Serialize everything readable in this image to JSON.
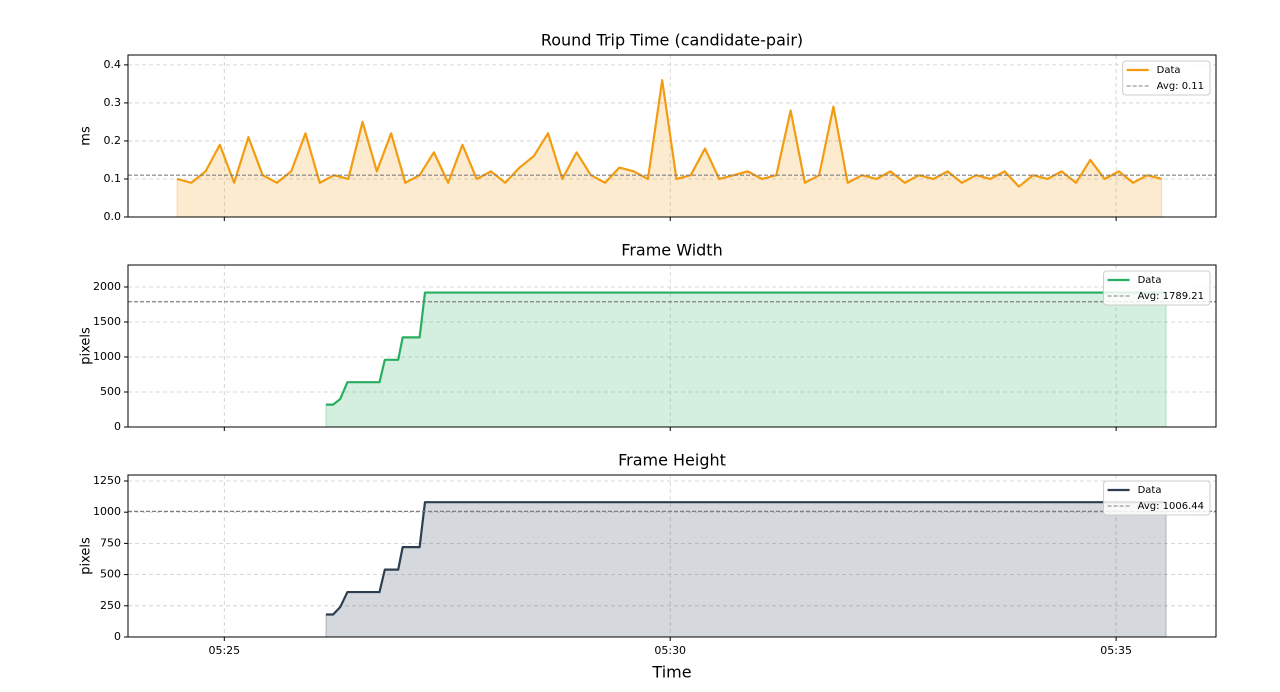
{
  "chart_data": [
    {
      "type": "line",
      "title": "Round Trip Time (candidate-pair)",
      "ylabel": "ms",
      "x": [
        324.47,
        324.63,
        324.79,
        324.95,
        325.11,
        325.27,
        325.43,
        325.59,
        325.75,
        325.91,
        326.07,
        326.23,
        326.39,
        326.55,
        326.71,
        326.87,
        327.03,
        327.19,
        327.35,
        327.51,
        327.67,
        327.83,
        327.99,
        328.15,
        328.31,
        328.47,
        328.63,
        328.79,
        328.95,
        329.11,
        329.27,
        329.43,
        329.59,
        329.75,
        329.91,
        330.07,
        330.23,
        330.39,
        330.55,
        330.71,
        330.87,
        331.03,
        331.19,
        331.35,
        331.51,
        331.67,
        331.83,
        331.99,
        332.15,
        332.31,
        332.47,
        332.63,
        332.79,
        332.95,
        333.11,
        333.27,
        333.43,
        333.59,
        333.75,
        333.91,
        334.07,
        334.23,
        334.39,
        334.55,
        334.71,
        334.87,
        335.03,
        335.19,
        335.35,
        335.51
      ],
      "series": [
        {
          "name": "Data",
          "color": "#f39c12",
          "values": [
            0.1,
            0.09,
            0.12,
            0.19,
            0.09,
            0.21,
            0.11,
            0.09,
            0.12,
            0.22,
            0.09,
            0.11,
            0.1,
            0.25,
            0.12,
            0.22,
            0.09,
            0.11,
            0.17,
            0.09,
            0.19,
            0.1,
            0.12,
            0.09,
            0.13,
            0.16,
            0.22,
            0.1,
            0.17,
            0.11,
            0.09,
            0.13,
            0.12,
            0.1,
            0.36,
            0.1,
            0.11,
            0.18,
            0.1,
            0.11,
            0.12,
            0.1,
            0.11,
            0.28,
            0.09,
            0.11,
            0.29,
            0.09,
            0.11,
            0.1,
            0.12,
            0.09,
            0.11,
            0.1,
            0.12,
            0.09,
            0.11,
            0.1,
            0.12,
            0.08,
            0.11,
            0.1,
            0.12,
            0.09,
            0.15,
            0.1,
            0.12,
            0.09,
            0.11,
            0.1
          ]
        }
      ],
      "avg_line": {
        "name": "Avg: 0.11",
        "value": 0.11,
        "color": "#808080"
      },
      "xlim": [
        323.92,
        336.12
      ],
      "ylim": [
        0,
        0.426
      ],
      "xticks": [
        {
          "value": 325,
          "label": "05:25"
        },
        {
          "value": 330,
          "label": "05:30"
        },
        {
          "value": 335,
          "label": "05:35"
        }
      ],
      "yticks": [
        {
          "value": 0,
          "label": "0.0"
        },
        0.1,
        0.2,
        0.3,
        0.4
      ],
      "grid": true,
      "legend": "upper right"
    },
    {
      "type": "line",
      "title": "Frame Width",
      "ylabel": "pixels",
      "x": [
        326.14,
        326.22,
        326.3,
        326.38,
        326.74,
        326.8,
        326.95,
        327.0,
        327.19,
        327.25,
        335.56
      ],
      "series": [
        {
          "name": "Data",
          "color": "#27ae60",
          "values": [
            320,
            320,
            400,
            640,
            640,
            960,
            960,
            1280,
            1280,
            1920,
            1920
          ]
        }
      ],
      "avg_line": {
        "name": "Avg: 1789.21",
        "value": 1789.21,
        "color": "#808080"
      },
      "xlim": [
        323.92,
        336.12
      ],
      "ylim": [
        0,
        2314
      ],
      "xticks": [
        {
          "value": 325,
          "label": "05:25"
        },
        {
          "value": 330,
          "label": "05:30"
        },
        {
          "value": 335,
          "label": "05:35"
        }
      ],
      "yticks": [
        0,
        500,
        1000,
        1500,
        2000
      ],
      "grid": true,
      "legend": "upper right"
    },
    {
      "type": "line",
      "title": "Frame Height",
      "ylabel": "pixels",
      "xlabel": "Time",
      "x": [
        326.14,
        326.22,
        326.3,
        326.38,
        326.74,
        326.8,
        326.95,
        327.0,
        327.19,
        327.25,
        335.56
      ],
      "series": [
        {
          "name": "Data",
          "color": "#2c3e50",
          "values": [
            180,
            180,
            240,
            360,
            360,
            540,
            540,
            720,
            720,
            1080,
            1080
          ]
        }
      ],
      "avg_line": {
        "name": "Avg: 1006.44",
        "value": 1006.44,
        "color": "#808080"
      },
      "xlim": [
        323.92,
        336.12
      ],
      "ylim": [
        0,
        1298
      ],
      "xticks": [
        {
          "value": 325,
          "label": "05:25"
        },
        {
          "value": 330,
          "label": "05:30"
        },
        {
          "value": 335,
          "label": "05:35"
        }
      ],
      "yticks": [
        0,
        250,
        500,
        750,
        1000,
        1250
      ],
      "grid": true,
      "legend": "upper right"
    }
  ]
}
